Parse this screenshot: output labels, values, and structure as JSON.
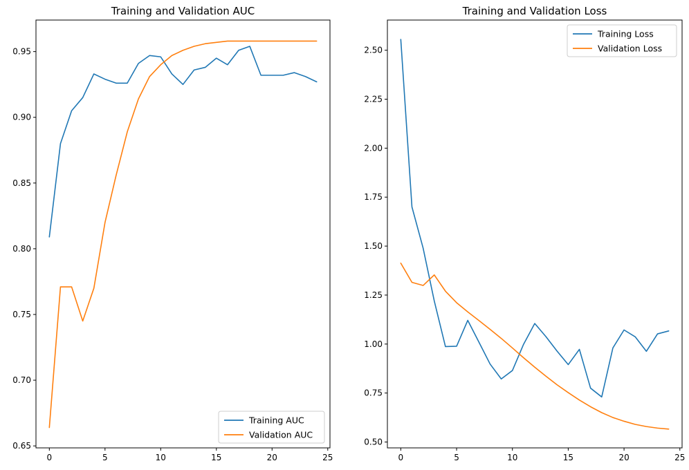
{
  "chart_data": [
    {
      "type": "line",
      "title": "Training and Validation AUC",
      "xlabel": "",
      "ylabel": "",
      "xlim": [
        -1.2,
        25.2
      ],
      "ylim": [
        0.6485,
        0.974
      ],
      "xticks": [
        0,
        5,
        10,
        15,
        20,
        25
      ],
      "yticks": [
        0.65,
        0.7,
        0.75,
        0.8,
        0.85,
        0.9,
        0.95
      ],
      "legend_position": "bottom-right",
      "x": [
        0,
        1,
        2,
        3,
        4,
        5,
        6,
        7,
        8,
        9,
        10,
        11,
        12,
        13,
        14,
        15,
        16,
        17,
        18,
        19,
        20,
        21,
        22,
        23,
        24
      ],
      "series": [
        {
          "name": "Training AUC",
          "color": "#1f77b4",
          "values": [
            0.809,
            0.88,
            0.905,
            0.915,
            0.933,
            0.929,
            0.926,
            0.926,
            0.941,
            0.947,
            0.946,
            0.933,
            0.925,
            0.936,
            0.938,
            0.945,
            0.94,
            0.951,
            0.954,
            0.932,
            0.932,
            0.932,
            0.934,
            0.931,
            0.927
          ]
        },
        {
          "name": "Validation AUC",
          "color": "#ff7f0e",
          "values": [
            0.664,
            0.771,
            0.771,
            0.745,
            0.77,
            0.82,
            0.856,
            0.889,
            0.914,
            0.931,
            0.94,
            0.947,
            0.951,
            0.954,
            0.956,
            0.957,
            0.958,
            0.958,
            0.958,
            0.958,
            0.958,
            0.958,
            0.958,
            0.958,
            0.958
          ]
        }
      ]
    },
    {
      "type": "line",
      "title": "Training and Validation Loss",
      "xlabel": "",
      "ylabel": "",
      "xlim": [
        -1.2,
        25.2
      ],
      "ylim": [
        0.47,
        2.654
      ],
      "xticks": [
        0,
        5,
        10,
        15,
        20,
        25
      ],
      "yticks": [
        0.5,
        0.75,
        1.0,
        1.25,
        1.5,
        1.75,
        2.0,
        2.25,
        2.5
      ],
      "legend_position": "top-right",
      "x": [
        0,
        1,
        2,
        3,
        4,
        5,
        6,
        7,
        8,
        9,
        10,
        11,
        12,
        13,
        14,
        15,
        16,
        17,
        18,
        19,
        20,
        21,
        22,
        23,
        24
      ],
      "series": [
        {
          "name": "Training Loss",
          "color": "#1f77b4",
          "values": [
            2.555,
            1.7,
            1.49,
            1.22,
            0.987,
            0.989,
            1.121,
            1.01,
            0.898,
            0.822,
            0.865,
            0.999,
            1.105,
            1.038,
            0.964,
            0.895,
            0.973,
            0.775,
            0.73,
            0.98,
            1.072,
            1.037,
            0.963,
            1.052,
            1.067
          ]
        },
        {
          "name": "Validation Loss",
          "color": "#ff7f0e",
          "values": [
            1.413,
            1.315,
            1.299,
            1.353,
            1.27,
            1.211,
            1.164,
            1.12,
            1.075,
            1.029,
            0.98,
            0.93,
            0.882,
            0.836,
            0.792,
            0.752,
            0.714,
            0.68,
            0.65,
            0.625,
            0.606,
            0.59,
            0.579,
            0.571,
            0.566
          ]
        }
      ]
    }
  ]
}
